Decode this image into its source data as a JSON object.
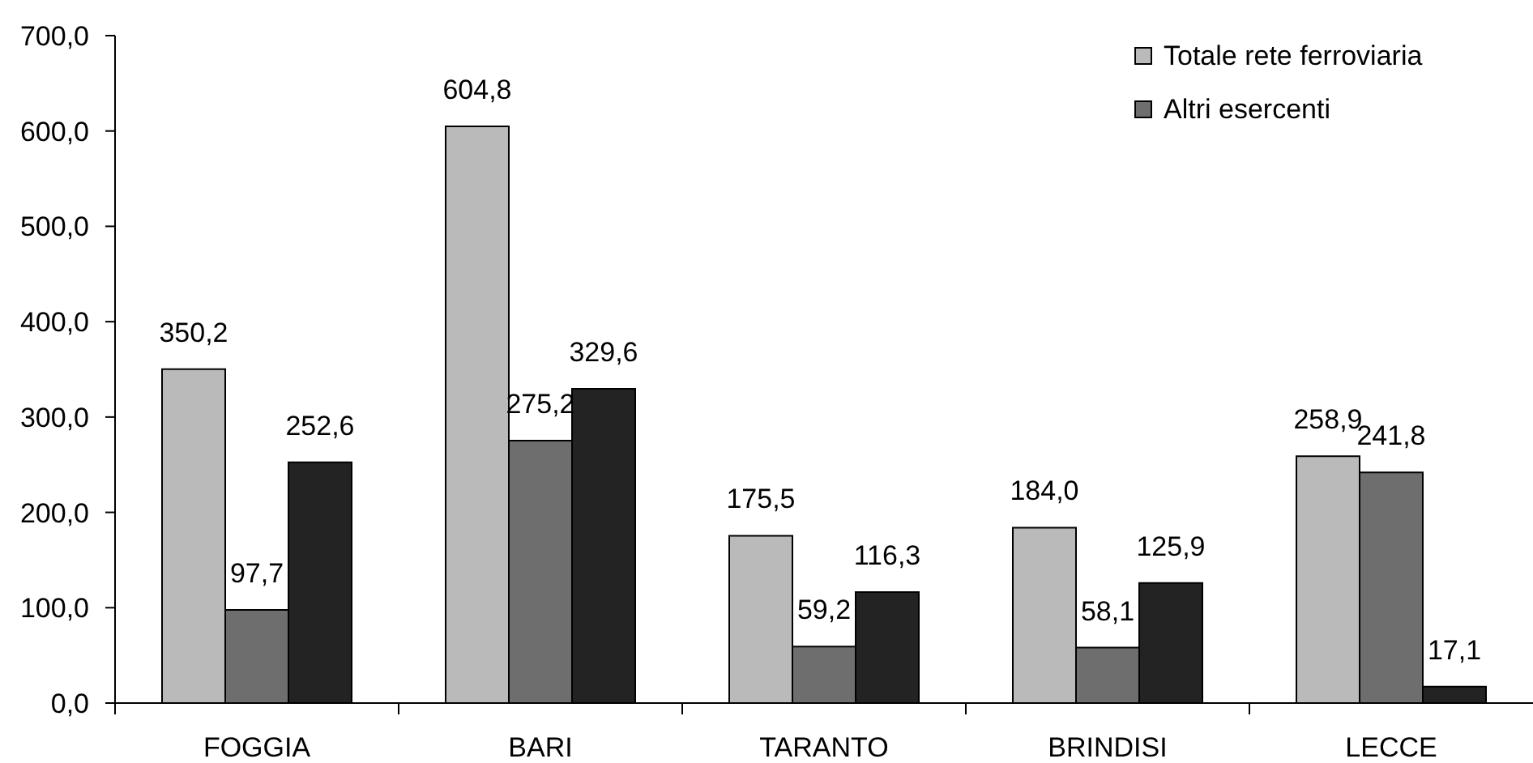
{
  "chart_data": {
    "type": "bar",
    "categories": [
      "FOGGIA",
      "BARI",
      "TARANTO",
      "BRINDISI",
      "LECCE"
    ],
    "series": [
      {
        "name": "Totale rete ferroviaria",
        "color": "#bababa",
        "values": [
          350.2,
          604.8,
          175.5,
          184.0,
          258.9
        ],
        "value_labels": [
          "350,2",
          "604,8",
          "175,5",
          "184,0",
          "258,9"
        ]
      },
      {
        "name": "Altri esercenti",
        "color": "#6e6e6e",
        "values": [
          97.7,
          275.2,
          59.2,
          58.1,
          241.8
        ],
        "value_labels": [
          "97,7",
          "275,2",
          "59,2",
          "58,1",
          "241,8"
        ]
      },
      {
        "color": "#232323",
        "values": [
          252.6,
          329.6,
          116.3,
          125.9,
          17.1
        ],
        "value_labels": [
          "252,6",
          "329,6",
          "116,3",
          "125,9",
          "17,1"
        ]
      }
    ],
    "ylim": [
      0,
      700
    ],
    "yticks": [
      {
        "value": 0,
        "label": "0,0"
      },
      {
        "value": 100,
        "label": "100,0"
      },
      {
        "value": 200,
        "label": "200,0"
      },
      {
        "value": 300,
        "label": "300,0"
      },
      {
        "value": 400,
        "label": "400,0"
      },
      {
        "value": 500,
        "label": "500,0"
      },
      {
        "value": 600,
        "label": "600,0"
      },
      {
        "value": 700,
        "label": "700,0"
      }
    ],
    "legend": "top right"
  }
}
